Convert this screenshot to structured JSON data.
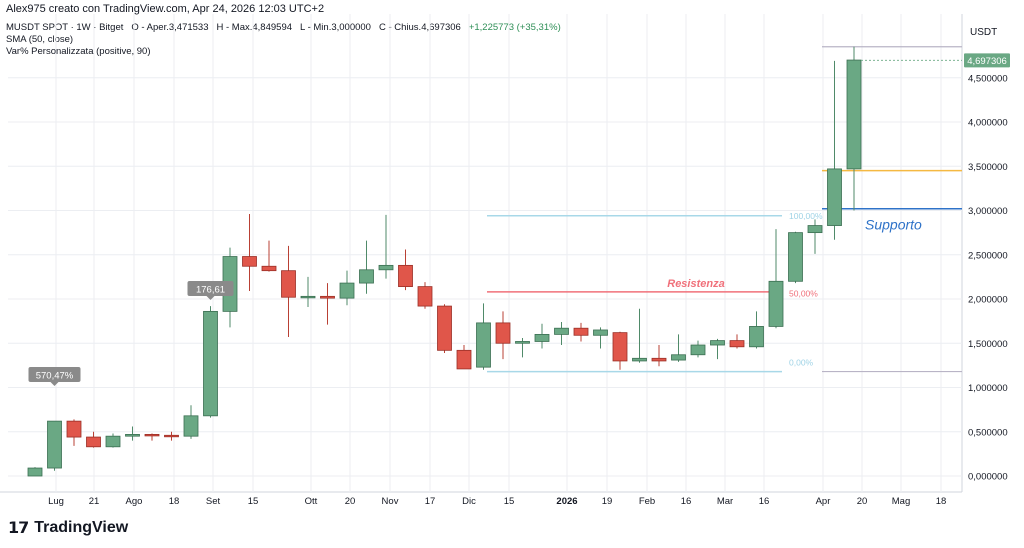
{
  "header": {
    "credit": "Alex975 creato con TradingView.com, Apr 24, 2026 12:03 UTC+2",
    "symbol_line": "MUSDT SPOT · 1W · Bitget",
    "ohlc": {
      "open": "O - Aper.3,471533",
      "high": "H - Max.4,849594",
      "low": "L - Min.3,000000",
      "close": "C - Chius.4,697306",
      "change": "+1,225773 (+35,31%)"
    },
    "indicator1": "SMA (50, close)",
    "indicator2": "Var% Personalizzata (positive, 90)"
  },
  "price_axis": {
    "unit": "USDT",
    "ticks": [
      "4,500000",
      "4,000000",
      "3,500000",
      "3,000000",
      "2,500000",
      "2,000000",
      "1,500000",
      "1,000000",
      "0,500000",
      "0,000000"
    ],
    "last_price": "4,697306"
  },
  "time_axis": {
    "ticks": [
      "Lug",
      "21",
      "Ago",
      "18",
      "Set",
      "15",
      "Ott",
      "20",
      "Nov",
      "17",
      "Dic",
      "15",
      "2026",
      "19",
      "Feb",
      "16",
      "Mar",
      "16",
      "Apr",
      "20",
      "Mag",
      "18"
    ]
  },
  "annotations": {
    "resistance_label": "Resistenza",
    "support_label": "Supporto",
    "badge1": "570,47%",
    "badge2": "176,61",
    "fib_top": "100,00%",
    "fib_mid": "50,00%",
    "fib_bottom": "0,00%"
  },
  "colors": {
    "up": "#6aa884",
    "down": "#e0564a",
    "resistance": "#f0707a",
    "support": "#2e72c8",
    "orange": "#f5b942",
    "fib": "#a8d8e8",
    "grid": "#eceef2"
  },
  "brand": {
    "name": "TradingView"
  },
  "chart_data": {
    "type": "candlestick",
    "title": "MUSDT SPOT · 1W · Bitget",
    "ylabel": "USDT",
    "ylim": [
      -0.1,
      5.2
    ],
    "x": [
      "Lug",
      "21",
      "Ago",
      "18",
      "Set",
      "15",
      "Ott",
      "20",
      "Nov",
      "17",
      "Dic",
      "15",
      "2026",
      "19",
      "Feb",
      "16",
      "Mar",
      "16",
      "Apr",
      "20",
      "Mag",
      "18"
    ],
    "candles": [
      {
        "o": 0.0,
        "h": 0.1,
        "l": 0.0,
        "c": 0.09
      },
      {
        "o": 0.09,
        "h": 0.62,
        "l": 0.06,
        "c": 0.62
      },
      {
        "o": 0.62,
        "h": 0.64,
        "l": 0.34,
        "c": 0.44
      },
      {
        "o": 0.44,
        "h": 0.5,
        "l": 0.32,
        "c": 0.33
      },
      {
        "o": 0.33,
        "h": 0.48,
        "l": 0.32,
        "c": 0.45
      },
      {
        "o": 0.45,
        "h": 0.56,
        "l": 0.4,
        "c": 0.47
      },
      {
        "o": 0.47,
        "h": 0.48,
        "l": 0.4,
        "c": 0.46
      },
      {
        "o": 0.46,
        "h": 0.5,
        "l": 0.4,
        "c": 0.45
      },
      {
        "o": 0.45,
        "h": 0.8,
        "l": 0.42,
        "c": 0.68
      },
      {
        "o": 0.68,
        "h": 1.92,
        "l": 0.66,
        "c": 1.86
      },
      {
        "o": 1.86,
        "h": 2.58,
        "l": 1.68,
        "c": 2.48
      },
      {
        "o": 2.48,
        "h": 2.96,
        "l": 2.09,
        "c": 2.37
      },
      {
        "o": 2.37,
        "h": 2.66,
        "l": 2.31,
        "c": 2.32
      },
      {
        "o": 2.32,
        "h": 2.6,
        "l": 1.57,
        "c": 2.02
      },
      {
        "o": 2.02,
        "h": 2.25,
        "l": 1.91,
        "c": 2.03
      },
      {
        "o": 2.03,
        "h": 2.18,
        "l": 1.71,
        "c": 2.01
      },
      {
        "o": 2.01,
        "h": 2.32,
        "l": 1.93,
        "c": 2.18
      },
      {
        "o": 2.18,
        "h": 2.66,
        "l": 2.06,
        "c": 2.33
      },
      {
        "o": 2.33,
        "h": 2.95,
        "l": 2.23,
        "c": 2.38
      },
      {
        "o": 2.38,
        "h": 2.56,
        "l": 2.1,
        "c": 2.14
      },
      {
        "o": 2.14,
        "h": 2.19,
        "l": 1.89,
        "c": 1.92
      },
      {
        "o": 1.92,
        "h": 1.94,
        "l": 1.39,
        "c": 1.42
      },
      {
        "o": 1.42,
        "h": 1.48,
        "l": 1.21,
        "c": 1.21
      },
      {
        "o": 1.23,
        "h": 1.95,
        "l": 1.2,
        "c": 1.73
      },
      {
        "o": 1.73,
        "h": 1.86,
        "l": 1.32,
        "c": 1.5
      },
      {
        "o": 1.5,
        "h": 1.56,
        "l": 1.34,
        "c": 1.52
      },
      {
        "o": 1.52,
        "h": 1.72,
        "l": 1.44,
        "c": 1.6
      },
      {
        "o": 1.6,
        "h": 1.74,
        "l": 1.48,
        "c": 1.67
      },
      {
        "o": 1.67,
        "h": 1.73,
        "l": 1.52,
        "c": 1.59
      },
      {
        "o": 1.59,
        "h": 1.68,
        "l": 1.44,
        "c": 1.65
      },
      {
        "o": 1.62,
        "h": 1.63,
        "l": 1.2,
        "c": 1.3
      },
      {
        "o": 1.3,
        "h": 1.89,
        "l": 1.28,
        "c": 1.33
      },
      {
        "o": 1.33,
        "h": 1.48,
        "l": 1.24,
        "c": 1.3
      },
      {
        "o": 1.31,
        "h": 1.6,
        "l": 1.29,
        "c": 1.37
      },
      {
        "o": 1.37,
        "h": 1.53,
        "l": 1.34,
        "c": 1.48
      },
      {
        "o": 1.48,
        "h": 1.55,
        "l": 1.32,
        "c": 1.53
      },
      {
        "o": 1.53,
        "h": 1.6,
        "l": 1.44,
        "c": 1.46
      },
      {
        "o": 1.46,
        "h": 1.86,
        "l": 1.44,
        "c": 1.69
      },
      {
        "o": 1.69,
        "h": 2.79,
        "l": 1.67,
        "c": 2.2
      },
      {
        "o": 2.2,
        "h": 2.76,
        "l": 2.18,
        "c": 2.75
      },
      {
        "o": 2.75,
        "h": 2.9,
        "l": 2.51,
        "c": 2.83
      },
      {
        "o": 2.83,
        "h": 4.69,
        "l": 2.67,
        "c": 3.47
      },
      {
        "o": 3.47,
        "h": 4.85,
        "l": 3.0,
        "c": 4.7
      }
    ],
    "levels": {
      "resistance": 2.08,
      "support": 3.02,
      "orange": 3.45,
      "fib_100": 2.94,
      "fib_0": 1.18,
      "gray_top": 4.85,
      "gray_bottom": 1.18
    }
  }
}
